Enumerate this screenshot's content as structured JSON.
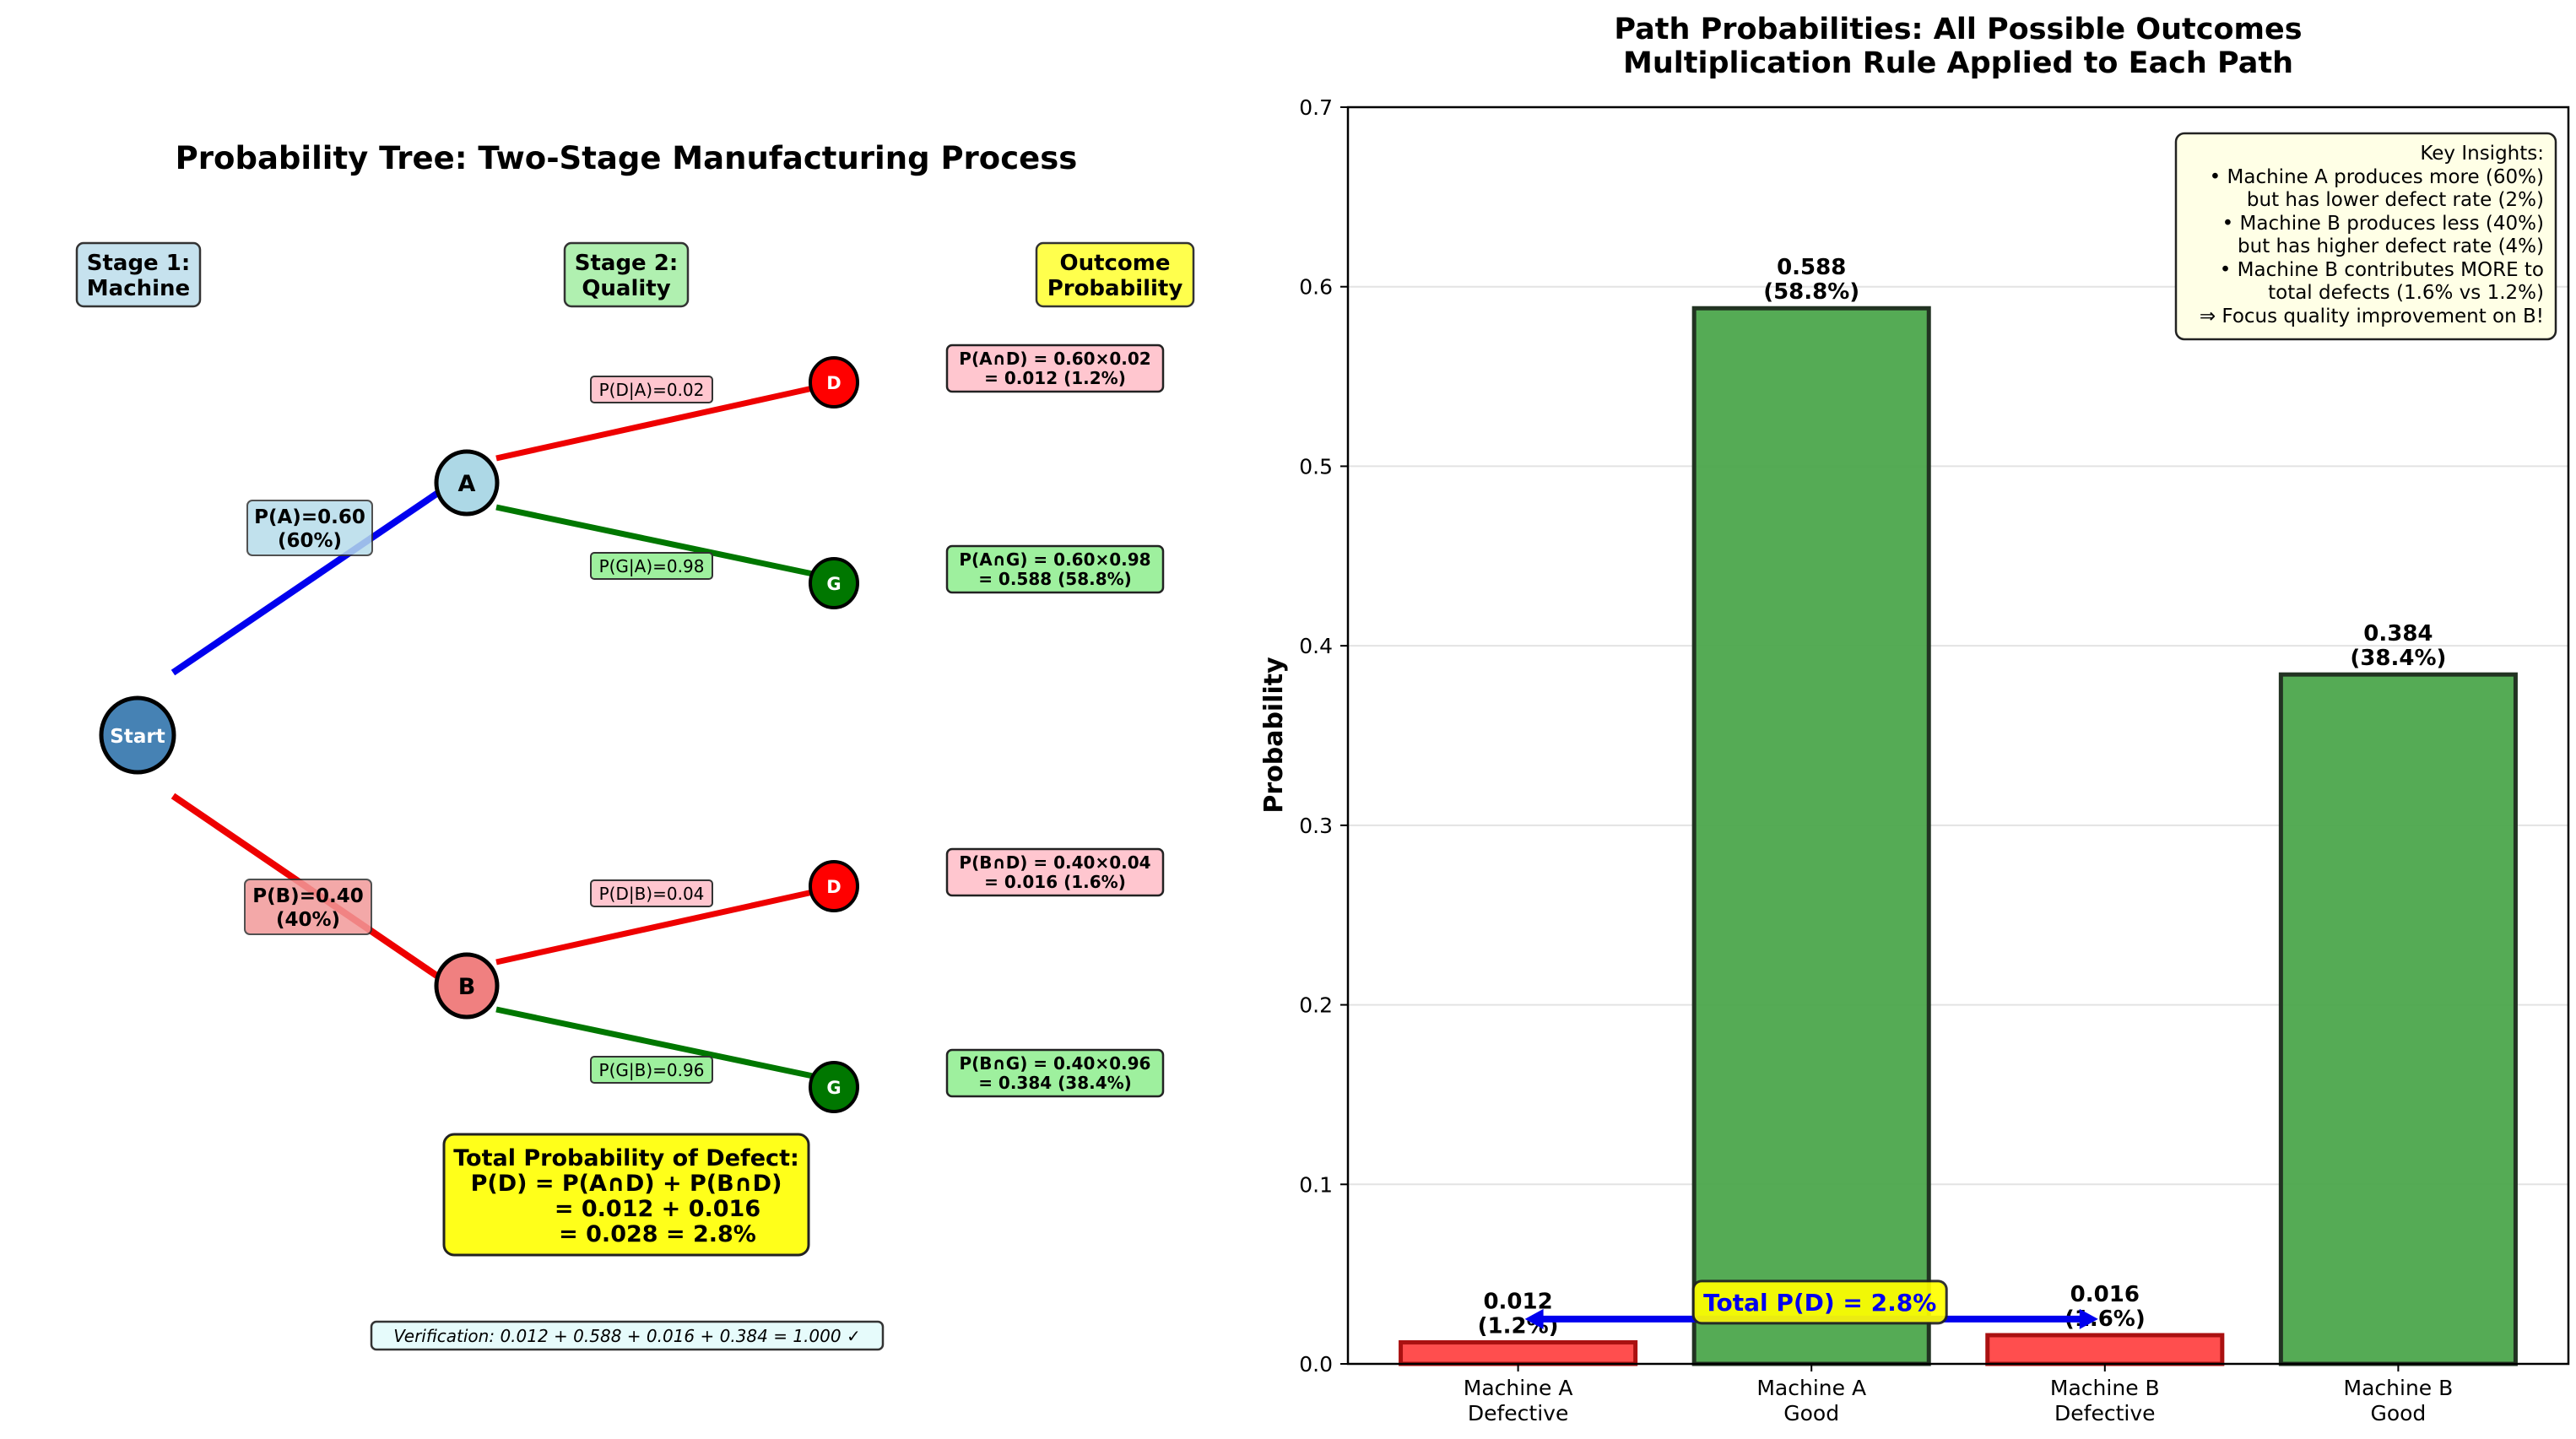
{
  "tree": {
    "title": "Probability Tree: Two-Stage Manufacturing Process",
    "headers": [
      {
        "line1": "Stage 1:",
        "line2": "Machine",
        "color": "#c6e2ee"
      },
      {
        "line1": "Stage 2:",
        "line2": "Quality",
        "color": "#b0f0b0"
      },
      {
        "line1": "Outcome",
        "line2": "Probability",
        "color": "#ffff4d"
      }
    ],
    "start_label": "Start",
    "machines": [
      {
        "name": "A",
        "branch_label": "P(A)=0.60",
        "branch_pct": "(60%)",
        "prob": 0.6,
        "node_color": "#add8e6",
        "branch_color": "#0000ee",
        "label_bg": "#b7dcea"
      },
      {
        "name": "B",
        "branch_label": "P(B)=0.40",
        "branch_pct": "(40%)",
        "prob": 0.4,
        "node_color": "#f08080",
        "branch_color": "#ee0000",
        "label_bg": "#f29a9a"
      }
    ],
    "outcomes": [
      {
        "machine": "A",
        "node": "D",
        "cond_label": "P(D|A)=0.02",
        "joint_line1": "P(A∩D) = 0.60×0.02",
        "joint_line2": "= 0.012 (1.2%)",
        "node_color": "#ff0000",
        "branch_color": "#ee0000",
        "box_bg": "#ffc6cf"
      },
      {
        "machine": "A",
        "node": "G",
        "cond_label": "P(G|A)=0.98",
        "joint_line1": "P(A∩G) = 0.60×0.98",
        "joint_line2": "= 0.588 (58.8%)",
        "node_color": "#007700",
        "branch_color": "#007700",
        "box_bg": "#9ef09e"
      },
      {
        "machine": "B",
        "node": "D",
        "cond_label": "P(D|B)=0.04",
        "joint_line1": "P(B∩D) = 0.40×0.04",
        "joint_line2": "= 0.016 (1.6%)",
        "node_color": "#ff0000",
        "branch_color": "#ee0000",
        "box_bg": "#ffc6cf"
      },
      {
        "machine": "B",
        "node": "G",
        "cond_label": "P(G|B)=0.96",
        "joint_line1": "P(B∩G) = 0.40×0.96",
        "joint_line2": "= 0.384 (38.4%)",
        "node_color": "#007700",
        "branch_color": "#007700",
        "box_bg": "#9ef09e"
      }
    ],
    "total_box": {
      "lines": [
        "Total Probability of Defect:",
        "P(D) = P(A∩D) + P(B∩D)",
        "= 0.012 + 0.016",
        "= 0.028 = 2.8%"
      ]
    },
    "verification": "Verification: 0.012 + 0.588 + 0.016 + 0.384 = 1.000 ✓"
  },
  "chart_data": {
    "type": "bar",
    "title": "Path Probabilities: All Possible Outcomes",
    "subtitle": "Multiplication Rule Applied to Each Path",
    "xlabel": "",
    "ylabel": "Probability",
    "ylim": [
      0,
      0.7
    ],
    "yticks": [
      0.0,
      0.1,
      0.2,
      0.3,
      0.4,
      0.5,
      0.6,
      0.7
    ],
    "ytick_labels": [
      "0.0",
      "0.1",
      "0.2",
      "0.3",
      "0.4",
      "0.5",
      "0.6",
      "0.7"
    ],
    "grid": "y",
    "categories": [
      [
        "Machine A",
        "Defective"
      ],
      [
        "Machine A",
        "Good"
      ],
      [
        "Machine B",
        "Defective"
      ],
      [
        "Machine B",
        "Good"
      ]
    ],
    "values": [
      0.012,
      0.588,
      0.016,
      0.384
    ],
    "value_labels": [
      [
        "0.012",
        "(1.2%)"
      ],
      [
        "0.588",
        "(58.8%)"
      ],
      [
        "0.016",
        "(1.6%)"
      ],
      [
        "0.384",
        "(38.4%)"
      ]
    ],
    "colors": [
      "#ff4444",
      "#4ca64c",
      "#ff4444",
      "#4ca64c"
    ],
    "edge_colors": [
      "#aa1111",
      "#223322",
      "#aa1111",
      "#223322"
    ],
    "annotation": {
      "text": "Total P(D) = 2.8%",
      "value_y": 0.025,
      "text_color": "#0000ee",
      "bg": "#ffff00",
      "arrow_color": "#0000ee"
    },
    "insights": {
      "position": "top-right",
      "lines": [
        "Key Insights:",
        "• Machine A produces more (60%)",
        "but has lower defect rate (2%)",
        "• Machine B produces less (40%)",
        "but has higher defect rate (4%)",
        "• Machine B contributes MORE to",
        "total defects (1.6% vs 1.2%)",
        "⇒ Focus quality improvement on B!"
      ]
    }
  }
}
